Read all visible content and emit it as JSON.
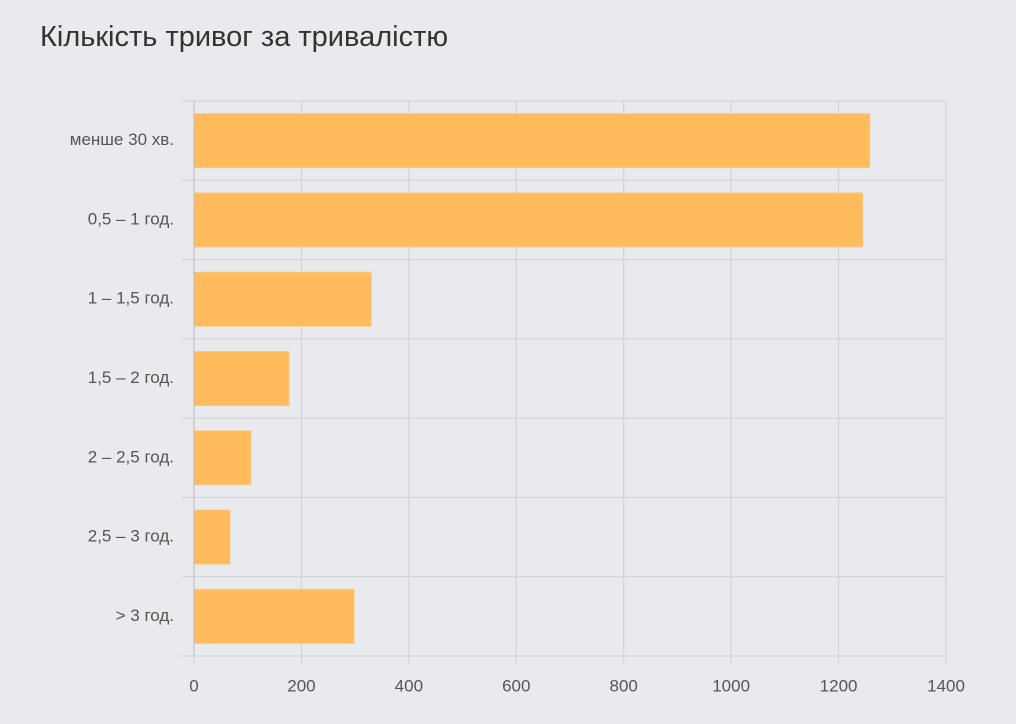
{
  "chart_data": {
    "type": "bar",
    "orientation": "horizontal",
    "title": "Кількість тривог за тривалістю",
    "categories": [
      "менше 30 хв.",
      "0,5 – 1 год.",
      "1 – 1,5 год.",
      "1,5 – 2 год.",
      "2 – 2,5 год.",
      "2,5 – 3 год.",
      "> 3 год."
    ],
    "values": [
      1258,
      1245,
      330,
      177,
      106,
      67,
      298
    ],
    "color": "#ffbb5c",
    "xlim": [
      0,
      1400
    ],
    "xticks": [
      0,
      200,
      400,
      600,
      800,
      1000,
      1200,
      1400
    ],
    "grid": true
  }
}
